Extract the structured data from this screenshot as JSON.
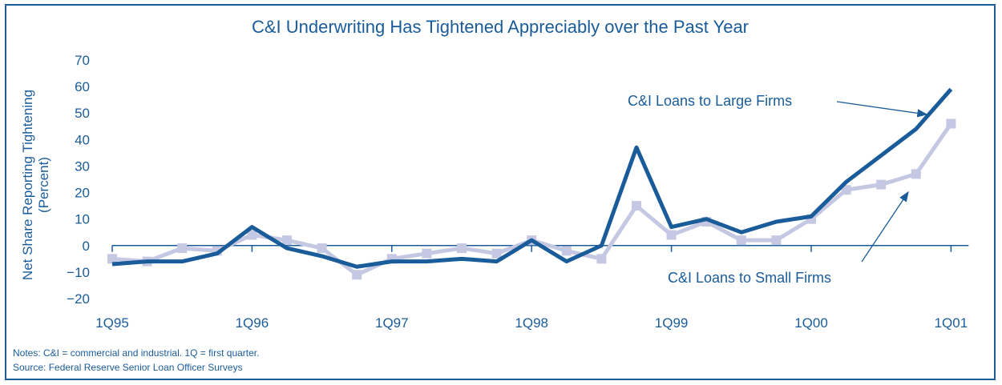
{
  "chart_data": {
    "type": "line",
    "title": "C&I Underwriting Has Tightened Appreciably over the Past Year",
    "ylabel_line1": "Net Share Reporting Tightening",
    "ylabel_line2": "(Percent)",
    "xlabel": "",
    "ylim": [
      -20,
      70
    ],
    "yticks": [
      -20,
      -10,
      0,
      10,
      20,
      30,
      40,
      50,
      60,
      70
    ],
    "ytick_labels": [
      "−20",
      "−10",
      "0",
      "10",
      "20",
      "30",
      "40",
      "50",
      "60",
      "70"
    ],
    "x_tick_labels": [
      "1Q95",
      "1Q96",
      "1Q97",
      "1Q98",
      "1Q99",
      "1Q00",
      "1Q01"
    ],
    "x": [
      "1Q95",
      "2Q95",
      "3Q95",
      "4Q95",
      "1Q96",
      "2Q96",
      "3Q96",
      "4Q96",
      "1Q97",
      "2Q97",
      "3Q97",
      "4Q97",
      "1Q98",
      "2Q98",
      "3Q98",
      "4Q98",
      "1Q99",
      "2Q99",
      "3Q99",
      "4Q99",
      "1Q00",
      "2Q00",
      "3Q00",
      "4Q00",
      "1Q01"
    ],
    "series": [
      {
        "name": "C&I Loans to Large Firms",
        "color": "#1a5c9a",
        "values": [
          -7,
          -6,
          -6,
          -3,
          7,
          -1,
          -4,
          -8,
          -6,
          -6,
          -5,
          -6,
          2,
          -6,
          0,
          37,
          7,
          10,
          5,
          9,
          11,
          24,
          34,
          44,
          59
        ]
      },
      {
        "name": "C&I Loans to Small Firms",
        "color": "#c5c8e2",
        "values": [
          -5,
          -6,
          -1,
          -2,
          4,
          2,
          -1,
          -11,
          -5,
          -3,
          -1,
          -3,
          2,
          -2,
          -5,
          15,
          4,
          9,
          2,
          2,
          10,
          21,
          23,
          27,
          46
        ]
      }
    ],
    "grid": false,
    "annotations": [
      {
        "text": "C&I Loans to Large Firms",
        "points_to": "C&I Loans to Large Firms"
      },
      {
        "text": "C&I Loans to Small Firms",
        "points_to": "C&I Loans to Small Firms"
      }
    ]
  },
  "notes": {
    "line1": "Notes: C&I = commercial and industrial. 1Q = first quarter.",
    "line2": "Source:  Federal Reserve Senior Loan Officer Surveys"
  }
}
